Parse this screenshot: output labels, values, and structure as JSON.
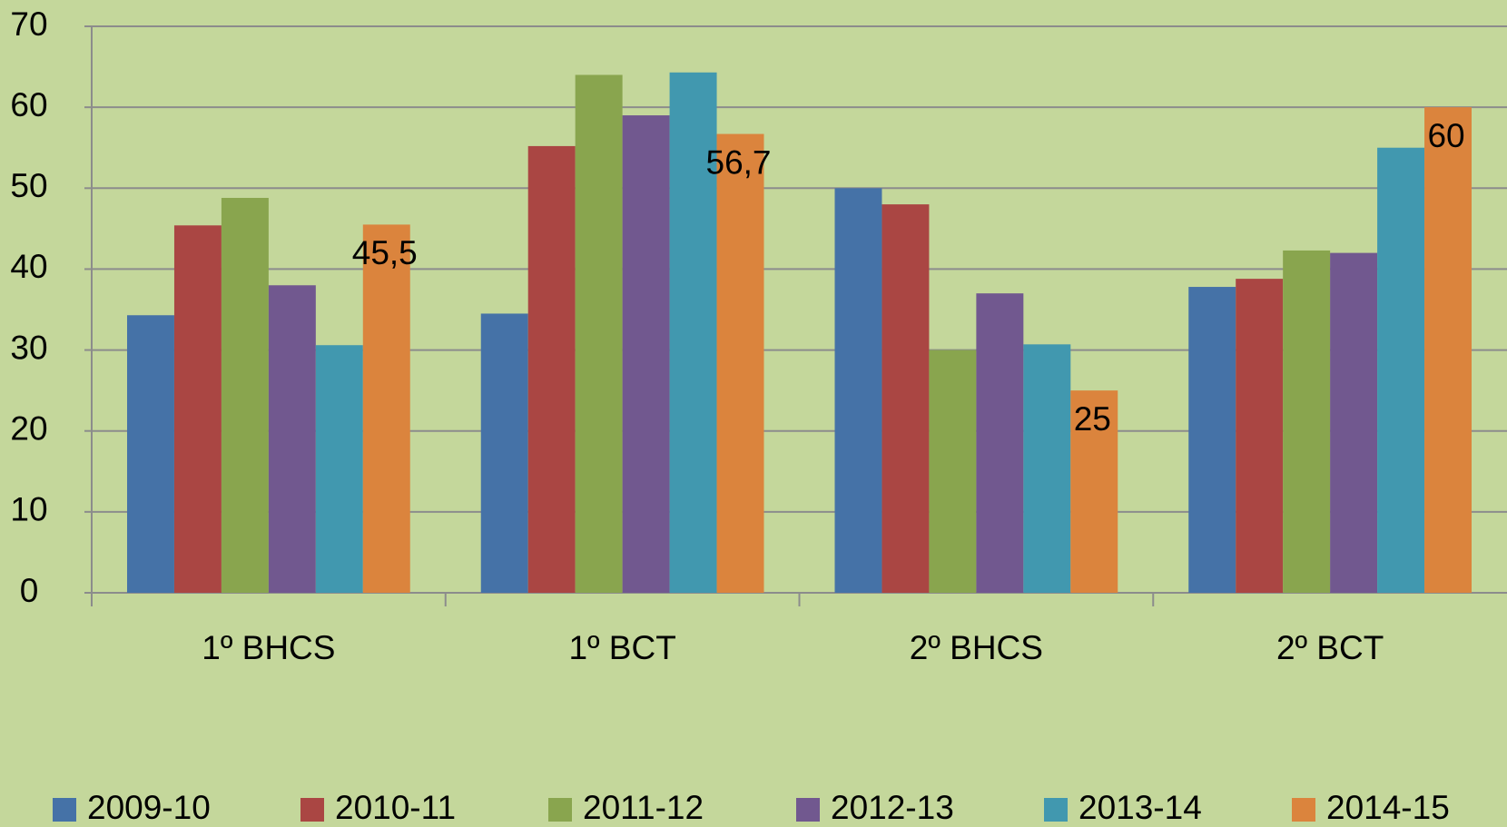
{
  "chart_data": {
    "type": "bar",
    "categories": [
      "1º BHCS",
      "1º BCT",
      "2º BHCS",
      "2º BCT"
    ],
    "series": [
      {
        "name": "2009-10",
        "color": "#4572a7",
        "values": [
          34.3,
          34.5,
          50,
          37.8
        ]
      },
      {
        "name": "2010-11",
        "color": "#aa4643",
        "values": [
          45.4,
          55.2,
          48,
          38.8
        ]
      },
      {
        "name": "2011-12",
        "color": "#89a54e",
        "values": [
          48.8,
          64,
          30,
          42.3
        ]
      },
      {
        "name": "2012-13",
        "color": "#71588f",
        "values": [
          38,
          59,
          37,
          42
        ]
      },
      {
        "name": "2013-14",
        "color": "#4198af",
        "values": [
          30.6,
          64.3,
          30.7,
          55
        ]
      },
      {
        "name": "2014-15",
        "color": "#db843d",
        "values": [
          45.5,
          56.7,
          25,
          60
        ],
        "value_labels": [
          "45,5",
          "56,7",
          "25",
          "60"
        ]
      }
    ],
    "ylim": [
      0,
      70
    ],
    "yticks": [
      0,
      10,
      20,
      30,
      40,
      50,
      60,
      70
    ],
    "grid": true,
    "legend": "bottom"
  }
}
